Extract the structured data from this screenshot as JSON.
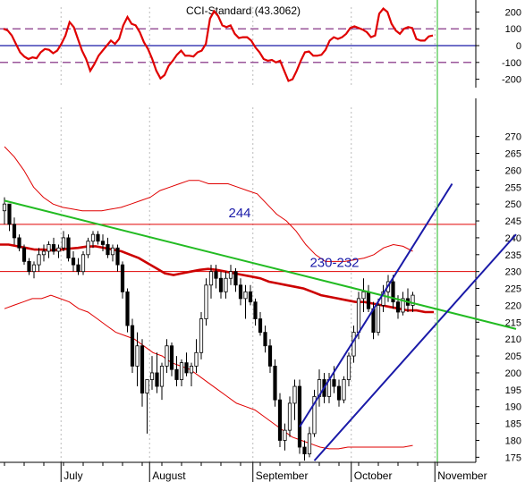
{
  "chart_data": [
    {
      "type": "line",
      "title": "CCI-Standard (43.3062)",
      "ylim": [
        -250,
        250
      ],
      "y_ticks": [
        200,
        100,
        0,
        -100,
        -200
      ],
      "reference_lines": [
        {
          "value": 100,
          "style": "dashed",
          "color": "#7a1f7a"
        },
        {
          "value": 0,
          "style": "solid",
          "color": "#1a1aa8"
        },
        {
          "value": -100,
          "style": "dashed",
          "color": "#7a1f7a"
        }
      ],
      "series": [
        {
          "color": "#e00000",
          "values": [
            100,
            90,
            60,
            10,
            -40,
            -65,
            -80,
            -70,
            -75,
            -40,
            -20,
            -25,
            -45,
            -30,
            10,
            60,
            140,
            110,
            40,
            -30,
            -80,
            -150,
            -110,
            -60,
            -30,
            0,
            30,
            10,
            40,
            120,
            170,
            130,
            120,
            80,
            20,
            -20,
            -80,
            -150,
            -195,
            -175,
            -120,
            -90,
            -55,
            -30,
            -60,
            -60,
            -65,
            -40,
            -30,
            10,
            160,
            205,
            175,
            120,
            110,
            120,
            70,
            45,
            50,
            50,
            30,
            -10,
            -40,
            -80,
            -90,
            -85,
            -100,
            -90,
            -150,
            -210,
            -200,
            -150,
            -90,
            -40,
            -35,
            -60,
            -60,
            -55,
            -25,
            30,
            50,
            40,
            50,
            70,
            105,
            115,
            105,
            95,
            80,
            50,
            60,
            190,
            220,
            200,
            130,
            90,
            70,
            100,
            110,
            105,
            40,
            30,
            30,
            55,
            60
          ]
        }
      ]
    },
    {
      "type": "bar",
      "subtype": "ohlc-with-bollinger-bands",
      "ylim": [
        173.5,
        276
      ],
      "y_ticks": [
        175,
        180,
        185,
        190,
        195,
        200,
        205,
        210,
        215,
        220,
        225,
        230,
        235,
        240,
        245,
        250,
        255,
        260,
        265,
        270
      ],
      "x_ticks": [
        "July",
        "August",
        "September",
        "October",
        "November"
      ],
      "annotations": [
        {
          "text": "244",
          "value": 244,
          "color": "#1a1aa8"
        },
        {
          "text": "230-232",
          "value": 230,
          "color": "#1a1aa8"
        }
      ],
      "horizontal_levels": [
        {
          "value": 244,
          "color": "#e00000"
        },
        {
          "value": 230,
          "color": "#e00000"
        }
      ],
      "trendlines": [
        {
          "name": "downtrend",
          "color": "#22bb22",
          "from": [
            0,
            251
          ],
          "to": [
            104,
            213
          ]
        },
        {
          "name": "channel-upper",
          "color": "#1a1aa8",
          "from": [
            60,
            184
          ],
          "to": [
            91,
            256
          ]
        },
        {
          "name": "channel-lower",
          "color": "#1a1aa8",
          "from": [
            63,
            174
          ],
          "to": [
            104,
            241
          ]
        }
      ],
      "vertical_marker": {
        "index": 88,
        "color": "#22bb22"
      },
      "month_starts": [
        0,
        12,
        30,
        51,
        71,
        88
      ],
      "moving_average": [
        238,
        238,
        237.5,
        237,
        236.5,
        236.5,
        236.3,
        236.5,
        236.8,
        237,
        237.4,
        237.5,
        237,
        236.5,
        236,
        235,
        234,
        232.5,
        231,
        229.5,
        229,
        229.5,
        230,
        230.5,
        230.8,
        230.5,
        230,
        229.5,
        229,
        228.5,
        228,
        227,
        226.5,
        226,
        225.5,
        225,
        224,
        223,
        222.5,
        222,
        221.5,
        221,
        221,
        220.5,
        220,
        219.5,
        219,
        218.5,
        218.5,
        218,
        218
      ],
      "upper_band": [
        267,
        264,
        260,
        255,
        252,
        250,
        249,
        248.5,
        248,
        248,
        248,
        248.5,
        249,
        250,
        251,
        252,
        254,
        255,
        256,
        257,
        257,
        256,
        256,
        256,
        255,
        254,
        253,
        250,
        247,
        245,
        242,
        238,
        235,
        233,
        233,
        233,
        233.5,
        234,
        235,
        237,
        238,
        237.5,
        236
      ],
      "lower_band": [
        219,
        220,
        221,
        222,
        222,
        223,
        222,
        221,
        219,
        218,
        216,
        214,
        212,
        211,
        210,
        208,
        206,
        205,
        203,
        202,
        201,
        199,
        197,
        195,
        193,
        191,
        190,
        189,
        187,
        185,
        183,
        181,
        180,
        179,
        178,
        177.5,
        177.5,
        178,
        178,
        178,
        178,
        178,
        178,
        178,
        178.5
      ],
      "candles": [
        {
          "o": 248,
          "h": 252,
          "l": 244,
          "c": 250
        },
        {
          "o": 250,
          "h": 250,
          "l": 242,
          "c": 244
        },
        {
          "o": 244,
          "h": 246,
          "l": 238,
          "c": 240
        },
        {
          "o": 240,
          "h": 241,
          "l": 236,
          "c": 237
        },
        {
          "o": 237,
          "h": 238,
          "l": 232,
          "c": 233
        },
        {
          "o": 233,
          "h": 234,
          "l": 229,
          "c": 230
        },
        {
          "o": 230,
          "h": 233,
          "l": 228,
          "c": 232
        },
        {
          "o": 232,
          "h": 237,
          "l": 230,
          "c": 235
        },
        {
          "o": 235,
          "h": 238,
          "l": 233,
          "c": 236
        },
        {
          "o": 236,
          "h": 239,
          "l": 234,
          "c": 238
        },
        {
          "o": 238,
          "h": 240,
          "l": 235,
          "c": 236
        },
        {
          "o": 236,
          "h": 238,
          "l": 234,
          "c": 237
        },
        {
          "o": 237,
          "h": 242,
          "l": 236,
          "c": 240
        },
        {
          "o": 240,
          "h": 241,
          "l": 233,
          "c": 234
        },
        {
          "o": 234,
          "h": 236,
          "l": 230,
          "c": 232
        },
        {
          "o": 232,
          "h": 234,
          "l": 229,
          "c": 230
        },
        {
          "o": 230,
          "h": 236,
          "l": 229,
          "c": 235
        },
        {
          "o": 235,
          "h": 240,
          "l": 234,
          "c": 239
        },
        {
          "o": 239,
          "h": 242,
          "l": 237,
          "c": 241
        },
        {
          "o": 241,
          "h": 242,
          "l": 238,
          "c": 239
        },
        {
          "o": 239,
          "h": 241,
          "l": 236,
          "c": 238
        },
        {
          "o": 238,
          "h": 240,
          "l": 234,
          "c": 235
        },
        {
          "o": 235,
          "h": 238,
          "l": 233,
          "c": 237
        },
        {
          "o": 237,
          "h": 238,
          "l": 230,
          "c": 232
        },
        {
          "o": 232,
          "h": 233,
          "l": 222,
          "c": 224
        },
        {
          "o": 224,
          "h": 225,
          "l": 212,
          "c": 214
        },
        {
          "o": 214,
          "h": 216,
          "l": 200,
          "c": 202
        },
        {
          "o": 202,
          "h": 212,
          "l": 196,
          "c": 208
        },
        {
          "o": 208,
          "h": 210,
          "l": 190,
          "c": 194
        },
        {
          "o": 194,
          "h": 198,
          "l": 182,
          "c": 198
        },
        {
          "o": 198,
          "h": 205,
          "l": 195,
          "c": 200
        },
        {
          "o": 200,
          "h": 206,
          "l": 194,
          "c": 196
        },
        {
          "o": 196,
          "h": 203,
          "l": 192,
          "c": 202
        },
        {
          "o": 202,
          "h": 210,
          "l": 200,
          "c": 208
        },
        {
          "o": 208,
          "h": 209,
          "l": 199,
          "c": 201
        },
        {
          "o": 201,
          "h": 205,
          "l": 196,
          "c": 198
        },
        {
          "o": 198,
          "h": 204,
          "l": 196,
          "c": 203
        },
        {
          "o": 203,
          "h": 206,
          "l": 199,
          "c": 200
        },
        {
          "o": 200,
          "h": 203,
          "l": 196,
          "c": 202
        },
        {
          "o": 202,
          "h": 210,
          "l": 200,
          "c": 206
        },
        {
          "o": 206,
          "h": 218,
          "l": 204,
          "c": 216
        },
        {
          "o": 216,
          "h": 228,
          "l": 214,
          "c": 226
        },
        {
          "o": 226,
          "h": 232,
          "l": 222,
          "c": 230
        },
        {
          "o": 230,
          "h": 232,
          "l": 225,
          "c": 228
        },
        {
          "o": 228,
          "h": 230,
          "l": 222,
          "c": 224
        },
        {
          "o": 224,
          "h": 230,
          "l": 222,
          "c": 228
        },
        {
          "o": 228,
          "h": 232,
          "l": 226,
          "c": 230
        },
        {
          "o": 230,
          "h": 231,
          "l": 224,
          "c": 226
        },
        {
          "o": 226,
          "h": 228,
          "l": 220,
          "c": 222
        },
        {
          "o": 222,
          "h": 226,
          "l": 216,
          "c": 224
        },
        {
          "o": 224,
          "h": 226,
          "l": 220,
          "c": 221
        },
        {
          "o": 221,
          "h": 222,
          "l": 214,
          "c": 216
        },
        {
          "o": 216,
          "h": 218,
          "l": 211,
          "c": 212
        },
        {
          "o": 212,
          "h": 214,
          "l": 206,
          "c": 208
        },
        {
          "o": 208,
          "h": 210,
          "l": 200,
          "c": 202
        },
        {
          "o": 202,
          "h": 204,
          "l": 190,
          "c": 192
        },
        {
          "o": 192,
          "h": 194,
          "l": 178,
          "c": 180
        },
        {
          "o": 180,
          "h": 185,
          "l": 177,
          "c": 183
        },
        {
          "o": 183,
          "h": 193,
          "l": 181,
          "c": 191
        },
        {
          "o": 191,
          "h": 198,
          "l": 186,
          "c": 196
        },
        {
          "o": 196,
          "h": 198,
          "l": 176,
          "c": 178
        },
        {
          "o": 178,
          "h": 180,
          "l": 174,
          "c": 176
        },
        {
          "o": 176,
          "h": 184,
          "l": 175,
          "c": 182
        },
        {
          "o": 182,
          "h": 195,
          "l": 181,
          "c": 193
        },
        {
          "o": 193,
          "h": 201,
          "l": 190,
          "c": 198
        },
        {
          "o": 198,
          "h": 200,
          "l": 191,
          "c": 193
        },
        {
          "o": 193,
          "h": 200,
          "l": 191,
          "c": 198
        },
        {
          "o": 198,
          "h": 202,
          "l": 194,
          "c": 196
        },
        {
          "o": 196,
          "h": 198,
          "l": 190,
          "c": 192
        },
        {
          "o": 192,
          "h": 199,
          "l": 191,
          "c": 198
        },
        {
          "o": 198,
          "h": 206,
          "l": 196,
          "c": 205
        },
        {
          "o": 205,
          "h": 214,
          "l": 203,
          "c": 212
        },
        {
          "o": 212,
          "h": 224,
          "l": 210,
          "c": 222
        },
        {
          "o": 222,
          "h": 228,
          "l": 218,
          "c": 224
        },
        {
          "o": 224,
          "h": 226,
          "l": 218,
          "c": 219
        },
        {
          "o": 219,
          "h": 221,
          "l": 210,
          "c": 212
        },
        {
          "o": 212,
          "h": 222,
          "l": 211,
          "c": 220
        },
        {
          "o": 220,
          "h": 226,
          "l": 218,
          "c": 224
        },
        {
          "o": 224,
          "h": 229,
          "l": 221,
          "c": 227
        },
        {
          "o": 227,
          "h": 229,
          "l": 219,
          "c": 221
        },
        {
          "o": 221,
          "h": 223,
          "l": 216,
          "c": 218
        },
        {
          "o": 218,
          "h": 224,
          "l": 217,
          "c": 222
        },
        {
          "o": 222,
          "h": 225,
          "l": 218,
          "c": 220
        },
        {
          "o": 220,
          "h": 224,
          "l": 218,
          "c": 223
        }
      ]
    }
  ],
  "colors": {
    "price_bars": "#000000",
    "bands": "#e00000",
    "moving_average": "#cc0000",
    "grid": "#bbbbbb"
  }
}
